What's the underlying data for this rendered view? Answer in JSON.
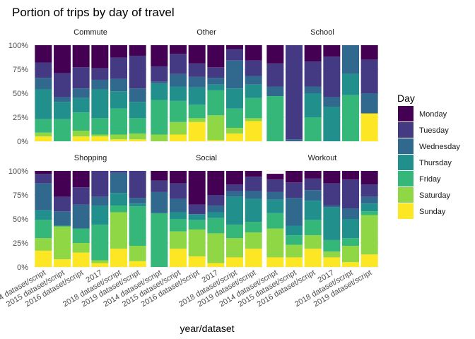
{
  "chart_data": {
    "type": "bar",
    "stacked": true,
    "title": "Portion of trips by day of travel",
    "xlabel": "year/dataset",
    "ylabel": "",
    "ylim": [
      0,
      1
    ],
    "y_ticks": [
      "0%",
      "25%",
      "50%",
      "75%",
      "100%"
    ],
    "categories": [
      "2014 dataset/script",
      "2015 dataset/script",
      "2016 dataset/script",
      "2017",
      "2018 dataset/script",
      "2019 dataset/script"
    ],
    "legend": {
      "title": "Day",
      "position": "right",
      "items": [
        "Monday",
        "Tuesday",
        "Wednesday",
        "Thursday",
        "Friday",
        "Saturday",
        "Sunday"
      ]
    },
    "colors": {
      "Monday": "#440154",
      "Tuesday": "#443a83",
      "Wednesday": "#31688e",
      "Thursday": "#21908d",
      "Friday": "#35b779",
      "Saturday": "#8fd744",
      "Sunday": "#fde725"
    },
    "panels": [
      {
        "title": "Commute",
        "bars": [
          {
            "Monday": 0.18,
            "Tuesday": 0.16,
            "Wednesday": 0.12,
            "Thursday": 0.31,
            "Friday": 0.14,
            "Saturday": 0.04,
            "Sunday": 0.05
          },
          {
            "Monday": 0.29,
            "Tuesday": 0.25,
            "Wednesday": 0.05,
            "Thursday": 0.18,
            "Friday": 0.23,
            "Saturday": 0.0,
            "Sunday": 0.0
          },
          {
            "Monday": 0.23,
            "Tuesday": 0.22,
            "Wednesday": 0.1,
            "Thursday": 0.15,
            "Friday": 0.19,
            "Saturday": 0.06,
            "Sunday": 0.05
          },
          {
            "Monday": 0.24,
            "Tuesday": 0.12,
            "Wednesday": 0.1,
            "Thursday": 0.3,
            "Friday": 0.17,
            "Saturday": 0.02,
            "Sunday": 0.05
          },
          {
            "Monday": 0.13,
            "Tuesday": 0.22,
            "Wednesday": 0.13,
            "Thursday": 0.18,
            "Friday": 0.27,
            "Saturday": 0.05,
            "Sunday": 0.02
          },
          {
            "Monday": 0.11,
            "Tuesday": 0.34,
            "Wednesday": 0.14,
            "Thursday": 0.17,
            "Friday": 0.16,
            "Saturday": 0.06,
            "Sunday": 0.02
          }
        ]
      },
      {
        "title": "Other",
        "bars": [
          {
            "Monday": 0.22,
            "Tuesday": 0.16,
            "Wednesday": 0.02,
            "Thursday": 0.17,
            "Friday": 0.36,
            "Saturday": 0.07,
            "Sunday": 0.0
          },
          {
            "Monday": 0.09,
            "Tuesday": 0.21,
            "Wednesday": 0.13,
            "Thursday": 0.15,
            "Friday": 0.22,
            "Saturday": 0.13,
            "Sunday": 0.07
          },
          {
            "Monday": 0.19,
            "Tuesday": 0.14,
            "Wednesday": 0.11,
            "Thursday": 0.18,
            "Friday": 0.14,
            "Saturday": 0.04,
            "Sunday": 0.2
          },
          {
            "Monday": 0.23,
            "Tuesday": 0.11,
            "Wednesday": 0.07,
            "Thursday": 0.06,
            "Friday": 0.26,
            "Saturday": 0.26,
            "Sunday": 0.01
          },
          {
            "Monday": 0.04,
            "Tuesday": 0.12,
            "Wednesday": 0.29,
            "Thursday": 0.21,
            "Friday": 0.2,
            "Saturday": 0.06,
            "Sunday": 0.08
          },
          {
            "Monday": 0.16,
            "Tuesday": 0.16,
            "Wednesday": 0.09,
            "Thursday": 0.14,
            "Friday": 0.21,
            "Saturday": 0.03,
            "Sunday": 0.21
          }
        ]
      },
      {
        "title": "School",
        "bars": [
          {
            "Monday": 0.19,
            "Tuesday": 0.24,
            "Wednesday": 0.1,
            "Thursday": 0.0,
            "Friday": 0.47,
            "Saturday": 0.0,
            "Sunday": 0.0
          },
          {
            "Monday": 0.0,
            "Tuesday": 0.98,
            "Wednesday": 0.02,
            "Thursday": 0.0,
            "Friday": 0.0,
            "Saturday": 0.0,
            "Sunday": 0.0
          },
          {
            "Monday": 0.17,
            "Tuesday": 0.26,
            "Wednesday": 0.07,
            "Thursday": 0.25,
            "Friday": 0.25,
            "Saturday": 0.0,
            "Sunday": 0.0
          },
          {
            "Monday": 0.12,
            "Tuesday": 0.42,
            "Wednesday": 0.1,
            "Thursday": 0.36,
            "Friday": 0.0,
            "Saturday": 0.0,
            "Sunday": 0.0
          },
          {
            "Monday": 0.0,
            "Tuesday": 0.0,
            "Wednesday": 0.3,
            "Thursday": 0.22,
            "Friday": 0.48,
            "Saturday": 0.0,
            "Sunday": 0.0
          },
          {
            "Monday": 0.15,
            "Tuesday": 0.35,
            "Wednesday": 0.21,
            "Thursday": 0.0,
            "Friday": 0.0,
            "Saturday": 0.0,
            "Sunday": 0.29
          }
        ]
      },
      {
        "title": "Shopping",
        "bars": [
          {
            "Monday": 0.03,
            "Tuesday": 0.1,
            "Wednesday": 0.28,
            "Thursday": 0.1,
            "Friday": 0.19,
            "Saturday": 0.13,
            "Sunday": 0.17
          },
          {
            "Monday": 0.27,
            "Tuesday": 0.15,
            "Wednesday": 0.15,
            "Thursday": 0.0,
            "Friday": 0.01,
            "Saturday": 0.34,
            "Sunday": 0.08
          },
          {
            "Monday": 0.17,
            "Tuesday": 0.18,
            "Wednesday": 0.25,
            "Thursday": 0.0,
            "Friday": 0.15,
            "Saturday": 0.1,
            "Sunday": 0.15
          },
          {
            "Monday": 0.0,
            "Tuesday": 0.27,
            "Wednesday": 0.09,
            "Thursday": 0.2,
            "Friday": 0.37,
            "Saturday": 0.03,
            "Sunday": 0.04
          },
          {
            "Monday": 0.0,
            "Tuesday": 0.02,
            "Wednesday": 0.21,
            "Thursday": 0.13,
            "Friday": 0.07,
            "Saturday": 0.38,
            "Sunday": 0.19
          },
          {
            "Monday": 0.0,
            "Tuesday": 0.28,
            "Wednesday": 0.06,
            "Thursday": 0.03,
            "Friday": 0.41,
            "Saturday": 0.16,
            "Sunday": 0.06
          }
        ]
      },
      {
        "title": "Social",
        "bars": [
          {
            "Monday": 0.1,
            "Tuesday": 0.12,
            "Wednesday": 0.22,
            "Thursday": 0.0,
            "Friday": 0.56,
            "Saturday": 0.0,
            "Sunday": 0.0
          },
          {
            "Monday": 0.13,
            "Tuesday": 0.16,
            "Wednesday": 0.14,
            "Thursday": 0.07,
            "Friday": 0.13,
            "Saturday": 0.18,
            "Sunday": 0.19
          },
          {
            "Monday": 0.35,
            "Tuesday": 0.1,
            "Wednesday": 0.0,
            "Thursday": 0.06,
            "Friday": 0.1,
            "Saturday": 0.28,
            "Sunday": 0.11
          },
          {
            "Monday": 0.25,
            "Tuesday": 0.11,
            "Wednesday": 0.07,
            "Thursday": 0.06,
            "Friday": 0.16,
            "Saturday": 0.31,
            "Sunday": 0.04
          },
          {
            "Monday": 0.14,
            "Tuesday": 0.07,
            "Wednesday": 0.06,
            "Thursday": 0.29,
            "Friday": 0.14,
            "Saturday": 0.2,
            "Sunday": 0.1
          },
          {
            "Monday": 0.06,
            "Tuesday": 0.15,
            "Wednesday": 0.08,
            "Thursday": 0.24,
            "Friday": 0.11,
            "Saturday": 0.17,
            "Sunday": 0.19
          }
        ]
      },
      {
        "title": "Workout",
        "bars": [
          {
            "Monday": 0.06,
            "Tuesday": 0.13,
            "Wednesday": 0.08,
            "Thursday": 0.14,
            "Friday": 0.16,
            "Saturday": 0.3,
            "Sunday": 0.1
          },
          {
            "Monday": 0.12,
            "Tuesday": 0.16,
            "Wednesday": 0.29,
            "Thursday": 0.1,
            "Friday": 0.1,
            "Saturday": 0.13,
            "Sunday": 0.1
          },
          {
            "Monday": 0.08,
            "Tuesday": 0.12,
            "Wednesday": 0.11,
            "Thursday": 0.2,
            "Friday": 0.16,
            "Saturday": 0.14,
            "Sunday": 0.19
          },
          {
            "Monday": 0.13,
            "Tuesday": 0.23,
            "Wednesday": 0.02,
            "Thursday": 0.34,
            "Friday": 0.12,
            "Saturday": 0.06,
            "Sunday": 0.1
          },
          {
            "Monday": 0.09,
            "Tuesday": 0.3,
            "Wednesday": 0.11,
            "Thursday": 0.2,
            "Friday": 0.08,
            "Saturday": 0.17,
            "Sunday": 0.05
          },
          {
            "Monday": 0.14,
            "Tuesday": 0.13,
            "Wednesday": 0.07,
            "Thursday": 0.08,
            "Friday": 0.04,
            "Saturday": 0.41,
            "Sunday": 0.13
          }
        ]
      }
    ]
  }
}
